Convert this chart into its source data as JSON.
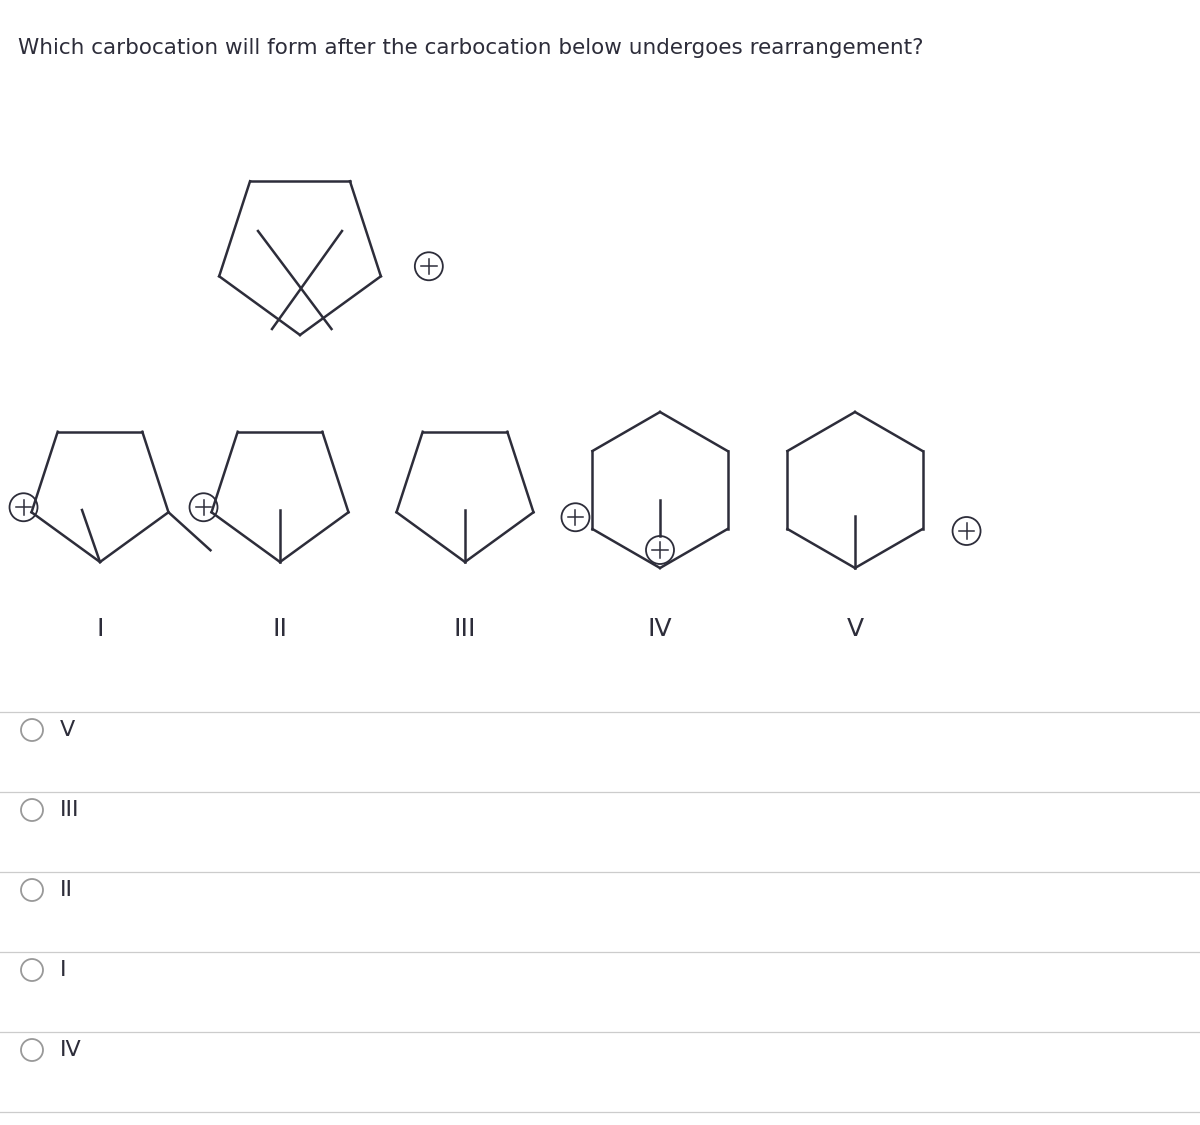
{
  "title": "Which carbocation will form after the carbocation below undergoes rearrangement?",
  "bg_color": "#ffffff",
  "line_color": "#2d2d3a",
  "text_color": "#2d2d3a",
  "title_fontsize": 15.5,
  "label_fontsize": 18,
  "answer_fontsize": 16,
  "answers": [
    "V",
    "III",
    "II",
    "I",
    "IV"
  ]
}
